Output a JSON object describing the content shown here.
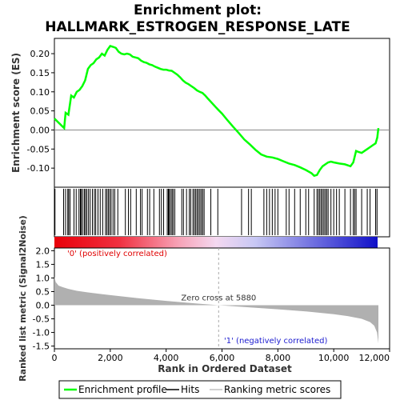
{
  "chart_data": {
    "type": "line",
    "title_line1": "Enrichment plot:",
    "title_line2": "HALLMARK_ESTROGEN_RESPONSE_LATE",
    "es_panel": {
      "ylabel": "Enrichment score (ES)",
      "ylim": [
        -0.15,
        0.24
      ],
      "yticks": [
        -0.1,
        -0.05,
        0.0,
        0.05,
        0.1,
        0.15,
        0.2
      ],
      "ytick_labels": [
        "-0.10",
        "-0.05",
        "0.00",
        "0.05",
        "0.10",
        "0.15",
        "0.20"
      ],
      "line_color": "#00ff00",
      "x": [
        0,
        350,
        400,
        500,
        600,
        700,
        800,
        900,
        1000,
        1100,
        1200,
        1300,
        1400,
        1500,
        1600,
        1700,
        1800,
        1900,
        2000,
        2100,
        2200,
        2300,
        2400,
        2500,
        2600,
        2700,
        2800,
        2900,
        3000,
        3100,
        3200,
        3300,
        3400,
        3500,
        3600,
        3700,
        3800,
        3900,
        4000,
        4100,
        4200,
        4300,
        4400,
        4500,
        4600,
        4700,
        4800,
        4900,
        5000,
        5100,
        5200,
        5300,
        5400,
        5500,
        5600,
        5700,
        5800,
        5880,
        6000,
        6200,
        6400,
        6600,
        6800,
        7000,
        7200,
        7400,
        7600,
        7800,
        8000,
        8200,
        8400,
        8600,
        8800,
        9000,
        9200,
        9300,
        9400,
        9500,
        9600,
        9700,
        9800,
        9900,
        10000,
        10200,
        10400,
        10600,
        10700,
        10800,
        10900,
        11000,
        11100,
        11200,
        11300,
        11400,
        11500,
        11560,
        11600
      ],
      "y": [
        0.03,
        0.005,
        0.045,
        0.04,
        0.09,
        0.085,
        0.1,
        0.105,
        0.115,
        0.13,
        0.16,
        0.17,
        0.175,
        0.185,
        0.19,
        0.2,
        0.195,
        0.21,
        0.22,
        0.218,
        0.215,
        0.205,
        0.2,
        0.198,
        0.2,
        0.198,
        0.192,
        0.19,
        0.188,
        0.182,
        0.178,
        0.176,
        0.172,
        0.17,
        0.166,
        0.163,
        0.16,
        0.158,
        0.158,
        0.156,
        0.155,
        0.15,
        0.145,
        0.138,
        0.13,
        0.124,
        0.12,
        0.115,
        0.11,
        0.104,
        0.1,
        0.097,
        0.09,
        0.082,
        0.074,
        0.066,
        0.058,
        0.052,
        0.043,
        0.025,
        0.008,
        -0.008,
        -0.025,
        -0.038,
        -0.052,
        -0.064,
        -0.07,
        -0.072,
        -0.076,
        -0.082,
        -0.088,
        -0.092,
        -0.098,
        -0.105,
        -0.113,
        -0.12,
        -0.118,
        -0.105,
        -0.095,
        -0.09,
        -0.085,
        -0.083,
        -0.085,
        -0.088,
        -0.09,
        -0.095,
        -0.085,
        -0.055,
        -0.058,
        -0.06,
        -0.055,
        -0.05,
        -0.045,
        -0.04,
        -0.035,
        -0.02,
        0.005
      ]
    },
    "hits": [
      20,
      330,
      400,
      480,
      510,
      560,
      700,
      780,
      880,
      930,
      960,
      1010,
      1070,
      1110,
      1160,
      1220,
      1280,
      1360,
      1430,
      1480,
      1560,
      1640,
      1730,
      1830,
      1880,
      1930,
      1980,
      2030,
      2100,
      2160,
      2270,
      2540,
      2650,
      2730,
      2930,
      3080,
      3140,
      3330,
      3410,
      3560,
      3760,
      3830,
      3910,
      4040,
      4080,
      4110,
      4160,
      4210,
      4250,
      4310,
      4560,
      4620,
      4730,
      4830,
      4880,
      4960,
      5010,
      5060,
      5110,
      5160,
      5210,
      5260,
      5310,
      5360,
      5600,
      5850,
      6700,
      6950,
      7050,
      7500,
      7600,
      7700,
      7800,
      7900,
      8000,
      8300,
      8400,
      8600,
      8800,
      9000,
      9100,
      9300,
      9400,
      9450,
      9500,
      9550,
      9600,
      9650,
      9700,
      9750,
      9800,
      9900,
      10000,
      10100,
      10200,
      10400,
      10600,
      10700,
      10750,
      10800,
      11000,
      11200,
      11300,
      11500,
      11550
    ],
    "ranked_panel": {
      "ylabel": "Ranked list metric (Signal2Noise)",
      "ylim": [
        -1.6,
        2.1
      ],
      "yticks": [
        -1.5,
        -1.0,
        -0.5,
        0.0,
        0.5,
        1.0,
        1.5,
        2.0
      ],
      "ytick_labels": [
        "-1.5",
        "-1.0",
        "-0.5",
        "0.0",
        "0.5",
        "1.0",
        "1.5",
        "2.0"
      ],
      "x": [
        0,
        50,
        150,
        300,
        500,
        800,
        1200,
        2000,
        3000,
        4000,
        5000,
        5880,
        7000,
        8000,
        9000,
        10000,
        10500,
        11000,
        11300,
        11450,
        11550,
        11600
      ],
      "y": [
        1.05,
        0.85,
        0.72,
        0.66,
        0.6,
        0.53,
        0.47,
        0.37,
        0.26,
        0.16,
        0.07,
        0.0,
        -0.08,
        -0.15,
        -0.23,
        -0.33,
        -0.4,
        -0.5,
        -0.62,
        -0.75,
        -1.0,
        -1.4
      ],
      "fill_color": "#b0b0b0",
      "zero_cross_label": "Zero cross at 5880",
      "zero_cross": 5880,
      "pos_label": "'0' (positively correlated)",
      "neg_label": "'1' (negatively correlated)"
    },
    "xaxis": {
      "xlabel": "Rank in Ordered Dataset",
      "xlim": [
        0,
        12000
      ],
      "xticks": [
        0,
        2000,
        4000,
        6000,
        8000,
        10000,
        12000
      ],
      "xtick_labels": [
        "0",
        "2,000",
        "4,000",
        "6,000",
        "8,000",
        "10,000",
        "12,000"
      ],
      "n_genes": 11600
    },
    "legend": {
      "items": [
        {
          "label": "Enrichment profile",
          "color": "#00ff00"
        },
        {
          "label": "Hits",
          "color": "#000000"
        },
        {
          "label": "Ranking metric scores",
          "color": "#c0c0c0"
        }
      ]
    }
  }
}
